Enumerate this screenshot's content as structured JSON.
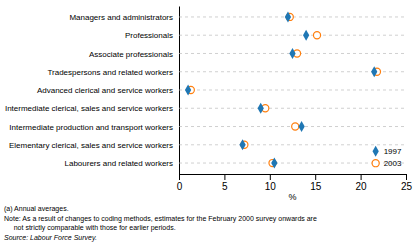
{
  "chart_data": {
    "type": "dot",
    "orientation": "horizontal",
    "categories": [
      "Managers and administrators",
      "Professionals",
      "Associate professionals",
      "Tradespersons and related workers",
      "Advanced clerical and service workers",
      "Intermediate clerical, sales and service workers",
      "Intermediate production and transport workers",
      "Elementary clerical, sales and service workers",
      "Labourers and related workers"
    ],
    "series": [
      {
        "name": "1997",
        "marker": "diamond",
        "values": [
          12.0,
          14.0,
          12.5,
          21.5,
          1.0,
          9.0,
          13.5,
          7.0,
          10.5
        ]
      },
      {
        "name": "2003",
        "marker": "open-circle",
        "values": [
          12.2,
          15.2,
          13.0,
          21.8,
          1.3,
          9.5,
          12.8,
          7.2,
          10.3
        ]
      }
    ],
    "xlabel": "%",
    "xlim": [
      0,
      25
    ],
    "xticks": [
      0,
      5,
      10,
      15,
      20,
      25
    ],
    "grid": true,
    "legend": "lower right",
    "annotations": [
      "(a) Annual averages.",
      "Note: As a result of changes to coding methods, estimates for the February 2000 survey onwards are\n     not strictly comparable with those for earlier periods.",
      "Source: Labour Force Survey."
    ]
  }
}
